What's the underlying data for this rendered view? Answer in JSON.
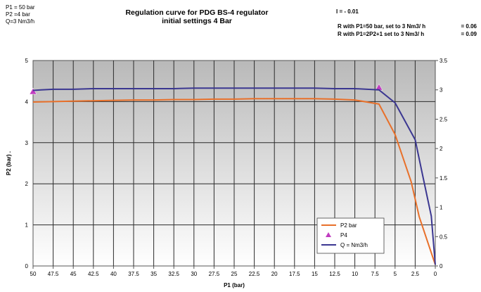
{
  "params": [
    "P1 = 50 bar",
    "P2 =4  bar",
    "Q=3 Nm3/h"
  ],
  "title_lines": [
    "Regulation curve  for PDG BS-4 regulator",
    "initial settings 4 Bar"
  ],
  "i_value": "I = - 0.01",
  "r_lines": [
    {
      "label": "R with P1=50 bar, set to 3 Nm3/ h",
      "value": "= 0.06"
    },
    {
      "label": "R with P1=2P2+1 set to 3 Nm3/ h",
      "value": "= 0.09"
    }
  ],
  "chart_data": {
    "type": "line",
    "xlabel": "P1 (bar)",
    "ylabel": "P2 (bar) .",
    "x_reversed": true,
    "xlim": [
      50,
      0
    ],
    "ylim": [
      0,
      5
    ],
    "y2lim": [
      0,
      3.5
    ],
    "grid": true,
    "legend_position": "bottom-right",
    "x_ticks": [
      "50",
      "47.5",
      "45",
      "42.5",
      "40",
      "37.5",
      "35",
      "32.5",
      "30",
      "27.5",
      "25",
      "22.5",
      "20",
      "17.5",
      "15",
      "12.5",
      "10",
      "7.5",
      "5",
      "2.5",
      "0"
    ],
    "y_ticks": [
      "0",
      "1",
      "2",
      "3",
      "4",
      "5"
    ],
    "y2_ticks": [
      "0",
      "0.5",
      "1",
      "1.5",
      "2",
      "2.5",
      "3",
      "3.5"
    ],
    "series": [
      {
        "name": "P2  bar",
        "axis": "left",
        "color": "#e8702a",
        "x": [
          50,
          47.5,
          45,
          42.5,
          40,
          37.5,
          35,
          32.5,
          30,
          27.5,
          25,
          22.5,
          20,
          17.5,
          15,
          12.5,
          10,
          7,
          5,
          3,
          2,
          0
        ],
        "y": [
          3.99,
          4.0,
          4.01,
          4.02,
          4.03,
          4.04,
          4.04,
          4.05,
          4.05,
          4.06,
          4.06,
          4.07,
          4.07,
          4.07,
          4.07,
          4.06,
          4.04,
          3.94,
          3.2,
          2.05,
          1.2,
          0.03
        ]
      },
      {
        "name": "P4",
        "axis": "right",
        "color": "#c03cc0",
        "marker": "triangle",
        "x": [
          50,
          7
        ],
        "y": [
          2.97,
          3.04
        ]
      },
      {
        "name": "Q = Nm3/h",
        "axis": "right",
        "color": "#3b3791",
        "x": [
          50,
          49,
          47.5,
          45,
          42.5,
          40,
          37.5,
          35,
          32.5,
          30,
          27.5,
          25,
          22.5,
          20,
          17.5,
          15,
          12.5,
          10,
          7,
          5,
          2.5,
          1.5,
          0.5,
          0
        ],
        "y": [
          2.99,
          3.0,
          3.01,
          3.01,
          3.02,
          3.02,
          3.02,
          3.02,
          3.02,
          3.03,
          3.03,
          3.03,
          3.03,
          3.03,
          3.03,
          3.03,
          3.02,
          3.02,
          3.0,
          2.78,
          2.15,
          1.5,
          0.85,
          0.02
        ]
      }
    ]
  }
}
